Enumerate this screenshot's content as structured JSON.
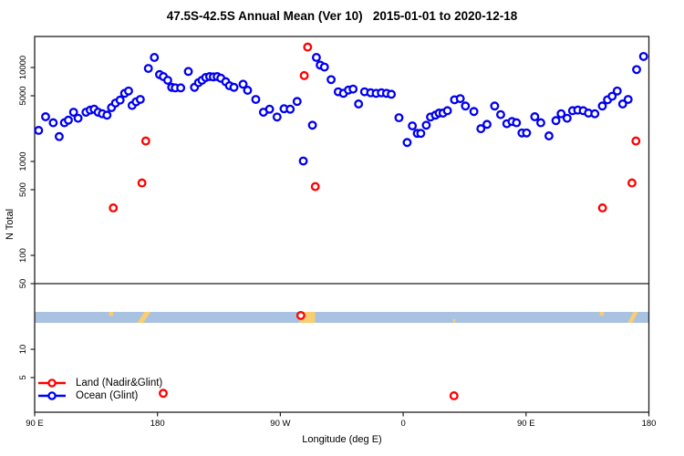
{
  "chart_data": {
    "type": "scatter",
    "title": "47.5S-42.5S Annual Mean (Ver 10)   2015-01-01 to 2020-12-18",
    "xlabel": "Longitude (deg E)",
    "ylabel": "N Total",
    "background_color": "#ffffff",
    "axis_color": "#1f1f1f",
    "x_axis": {
      "note": "longitude axis spanning 450 degrees eastward from 90E",
      "span_deg": [
        90,
        540
      ],
      "major_ticks": [
        {
          "deg": 90,
          "label": "90 E"
        },
        {
          "deg": 180,
          "label": "180"
        },
        {
          "deg": 270,
          "label": "90 W"
        },
        {
          "deg": 360,
          "label": "0"
        },
        {
          "deg": 450,
          "label": "90 E"
        },
        {
          "deg": 540,
          "label": "180"
        }
      ]
    },
    "y_axis": {
      "scale": "log10",
      "range_v": [
        2.2,
        21800
      ],
      "ticks": [
        {
          "v": 5,
          "label": "5"
        },
        {
          "v": 10,
          "label": "10"
        },
        {
          "v": 50,
          "label": "50"
        },
        {
          "v": 100,
          "label": "100"
        },
        {
          "v": 500,
          "label": "500"
        },
        {
          "v": 1000,
          "label": "1000"
        },
        {
          "v": 5000,
          "label": "5000"
        },
        {
          "v": 10000,
          "label": "10000"
        }
      ]
    },
    "separator_line_v": 50,
    "map_band": {
      "note": "land/ocean mask strip for the 47.5S-42.5S latitude band",
      "v_range": [
        19.1,
        25.0
      ],
      "ocean_color": "#a9c2e1",
      "land_color": "#f9cd72",
      "land_patches": [
        {
          "from_deg": 144.5,
          "to_deg": 147.5,
          "shape": "top-sliver"
        },
        {
          "from_deg": 165.0,
          "to_deg": 175.0,
          "shape": "diagonal"
        },
        {
          "from_deg": 283.5,
          "to_deg": 295.5,
          "shape": "block-taper"
        },
        {
          "from_deg": 396.5,
          "to_deg": 398.2,
          "shape": "dot"
        },
        {
          "from_deg": 504.0,
          "to_deg": 507.0,
          "shape": "top-sliver"
        },
        {
          "from_deg": 524.5,
          "to_deg": 532.0,
          "shape": "diagonal"
        }
      ]
    },
    "series": [
      {
        "name": "Land (Nadir&Glint)",
        "color": "#ff0000",
        "points": [
          [
            147.6,
            320
          ],
          [
            168.6,
            590
          ],
          [
            171.4,
            1650
          ],
          [
            287.5,
            8200
          ],
          [
            290,
            16500
          ],
          [
            295.6,
            540
          ],
          [
            285,
            22.9
          ],
          [
            184.2,
            3.4
          ],
          [
            397.2,
            3.2
          ],
          [
            506,
            320
          ],
          [
            527.6,
            590
          ],
          [
            530.5,
            1650
          ]
        ]
      },
      {
        "name": "Ocean (Glint)",
        "color": "#0000ee",
        "points": [
          [
            92.9,
            2140
          ],
          [
            98,
            2990
          ],
          [
            103.6,
            2580
          ],
          [
            108,
            1840
          ],
          [
            111.8,
            2580
          ],
          [
            114.7,
            2750
          ],
          [
            118.5,
            3340
          ],
          [
            121.8,
            2880
          ],
          [
            127.6,
            3340
          ],
          [
            130.7,
            3520
          ],
          [
            133.6,
            3600
          ],
          [
            136.5,
            3340
          ],
          [
            139.6,
            3220
          ],
          [
            143,
            3110
          ],
          [
            146.3,
            3740
          ],
          [
            149.2,
            4180
          ],
          [
            152.6,
            4500
          ],
          [
            155.9,
            5310
          ],
          [
            158.8,
            5620
          ],
          [
            161.4,
            3940
          ],
          [
            164.3,
            4310
          ],
          [
            167.4,
            4570
          ],
          [
            173.3,
            9770
          ],
          [
            177.7,
            12800
          ],
          [
            181.5,
            8410
          ],
          [
            184.3,
            8000
          ],
          [
            187.5,
            7310
          ],
          [
            190.4,
            6150
          ],
          [
            193,
            6070
          ],
          [
            197,
            6070
          ],
          [
            202.6,
            9080
          ],
          [
            207.1,
            6150
          ],
          [
            210,
            6890
          ],
          [
            212.6,
            7310
          ],
          [
            215.3,
            7820
          ],
          [
            218.2,
            8000
          ],
          [
            220.9,
            7940
          ],
          [
            223.7,
            8000
          ],
          [
            226.4,
            7690
          ],
          [
            230,
            7050
          ],
          [
            232.7,
            6400
          ],
          [
            236,
            6150
          ],
          [
            242.7,
            6640
          ],
          [
            246,
            5720
          ],
          [
            252,
            4570
          ],
          [
            257.6,
            3340
          ],
          [
            262.1,
            3600
          ],
          [
            267.6,
            2970
          ],
          [
            272.7,
            3640
          ],
          [
            277.2,
            3600
          ],
          [
            282.3,
            4350
          ],
          [
            286.8,
            1010
          ],
          [
            293.5,
            2430
          ],
          [
            296.4,
            12800
          ],
          [
            299.2,
            10600
          ],
          [
            302.3,
            10100
          ],
          [
            307.2,
            7430
          ],
          [
            312.4,
            5510
          ],
          [
            316.2,
            5310
          ],
          [
            319.9,
            5750
          ],
          [
            323.3,
            5890
          ],
          [
            327.3,
            4090
          ],
          [
            331.7,
            5510
          ],
          [
            336.2,
            5380
          ],
          [
            340.2,
            5310
          ],
          [
            344,
            5380
          ],
          [
            347.8,
            5310
          ],
          [
            351.3,
            5190
          ],
          [
            356.9,
            2920
          ],
          [
            362.9,
            1590
          ],
          [
            366.7,
            2390
          ],
          [
            370.3,
            1990
          ],
          [
            372.9,
            1990
          ],
          [
            376.9,
            2430
          ],
          [
            380,
            2970
          ],
          [
            383.6,
            3110
          ],
          [
            386.3,
            3270
          ],
          [
            389.2,
            3270
          ],
          [
            392.4,
            3470
          ],
          [
            397.6,
            4530
          ],
          [
            401.8,
            4660
          ],
          [
            405.6,
            3890
          ],
          [
            411.8,
            3400
          ],
          [
            416.9,
            2230
          ],
          [
            421.4,
            2480
          ],
          [
            427,
            3890
          ],
          [
            431.4,
            3150
          ],
          [
            435.9,
            2520
          ],
          [
            439.7,
            2660
          ],
          [
            443,
            2580
          ],
          [
            447,
            2010
          ],
          [
            450.4,
            2010
          ],
          [
            456.4,
            2990
          ],
          [
            460.8,
            2580
          ],
          [
            466.8,
            1870
          ],
          [
            471.9,
            2720
          ],
          [
            475.7,
            3220
          ],
          [
            480.1,
            2880
          ],
          [
            484.1,
            3470
          ],
          [
            487.9,
            3520
          ],
          [
            491.9,
            3470
          ],
          [
            495.7,
            3270
          ],
          [
            500.4,
            3220
          ],
          [
            505.9,
            3890
          ],
          [
            509.7,
            4530
          ],
          [
            513.1,
            4940
          ],
          [
            516.8,
            5620
          ],
          [
            520.8,
            4090
          ],
          [
            524.8,
            4570
          ],
          [
            531,
            9500
          ],
          [
            536.1,
            13100
          ]
        ]
      }
    ],
    "legend_position": "bottom-left"
  }
}
